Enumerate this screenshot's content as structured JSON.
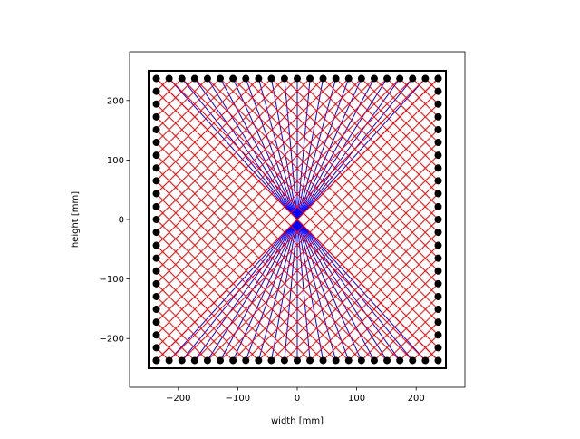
{
  "chart_data": {
    "type": "string-art",
    "xlabel": "width [mm]",
    "ylabel": "height [mm]",
    "xlim": [
      -282,
      282
    ],
    "ylim": [
      -282,
      282
    ],
    "xticks": [
      -200,
      -100,
      0,
      100,
      200
    ],
    "yticks": [
      -200,
      -100,
      0,
      100,
      200
    ],
    "frame": [
      -250,
      250
    ],
    "frame_color": "#000000",
    "nail_color": "#000000",
    "nail_positions": [
      -237,
      -215.5,
      -194,
      -172.5,
      -151,
      -129.5,
      -108,
      -86.5,
      -65,
      -43.5,
      -21.5,
      0,
      21.5,
      43.5,
      65,
      86.5,
      108,
      129.5,
      151,
      172.5,
      194,
      215.5,
      237
    ],
    "series": [
      {
        "color": "#0000ff",
        "pattern": "cross"
      },
      {
        "color": "#ff0000",
        "pattern": "corners"
      }
    ]
  }
}
